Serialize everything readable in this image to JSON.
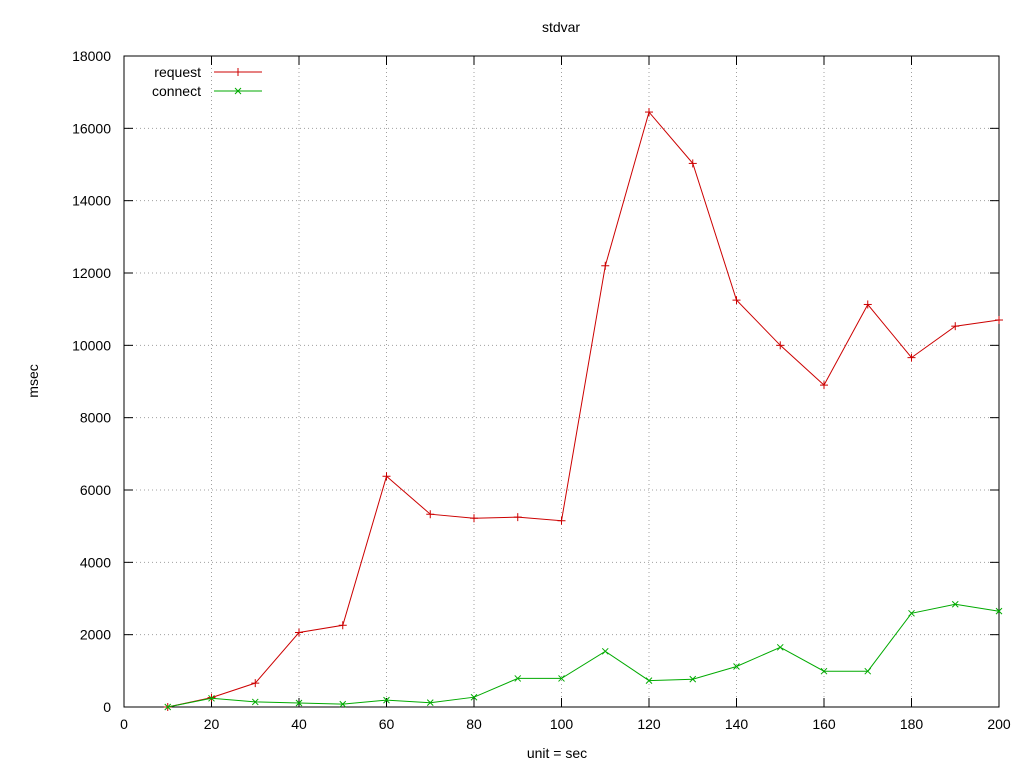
{
  "chart_data": {
    "type": "line",
    "title": "stdvar",
    "xlabel": "unit = sec",
    "ylabel": "msec",
    "xlim": [
      0,
      200
    ],
    "ylim": [
      0,
      18000
    ],
    "x_ticks": [
      0,
      20,
      40,
      60,
      80,
      100,
      120,
      140,
      160,
      180,
      200
    ],
    "y_ticks": [
      0,
      2000,
      4000,
      6000,
      8000,
      10000,
      12000,
      14000,
      16000,
      18000
    ],
    "grid": true,
    "legend_position": "top-left",
    "x": [
      10,
      20,
      30,
      40,
      50,
      60,
      70,
      80,
      90,
      100,
      110,
      120,
      130,
      140,
      150,
      160,
      170,
      180,
      190,
      200
    ],
    "series": [
      {
        "name": "request",
        "color": "#cc0000",
        "marker": "plus",
        "values": [
          0,
          260,
          660,
          2060,
          2260,
          6380,
          5330,
          5220,
          5250,
          5150,
          12200,
          16450,
          15030,
          11250,
          10000,
          8900,
          11130,
          9660,
          10530,
          10700
        ]
      },
      {
        "name": "connect",
        "color": "#00aa00",
        "marker": "cross",
        "values": [
          0,
          240,
          140,
          110,
          80,
          190,
          120,
          270,
          790,
          790,
          1540,
          730,
          770,
          1120,
          1650,
          990,
          990,
          2590,
          2840,
          2650
        ]
      }
    ]
  }
}
